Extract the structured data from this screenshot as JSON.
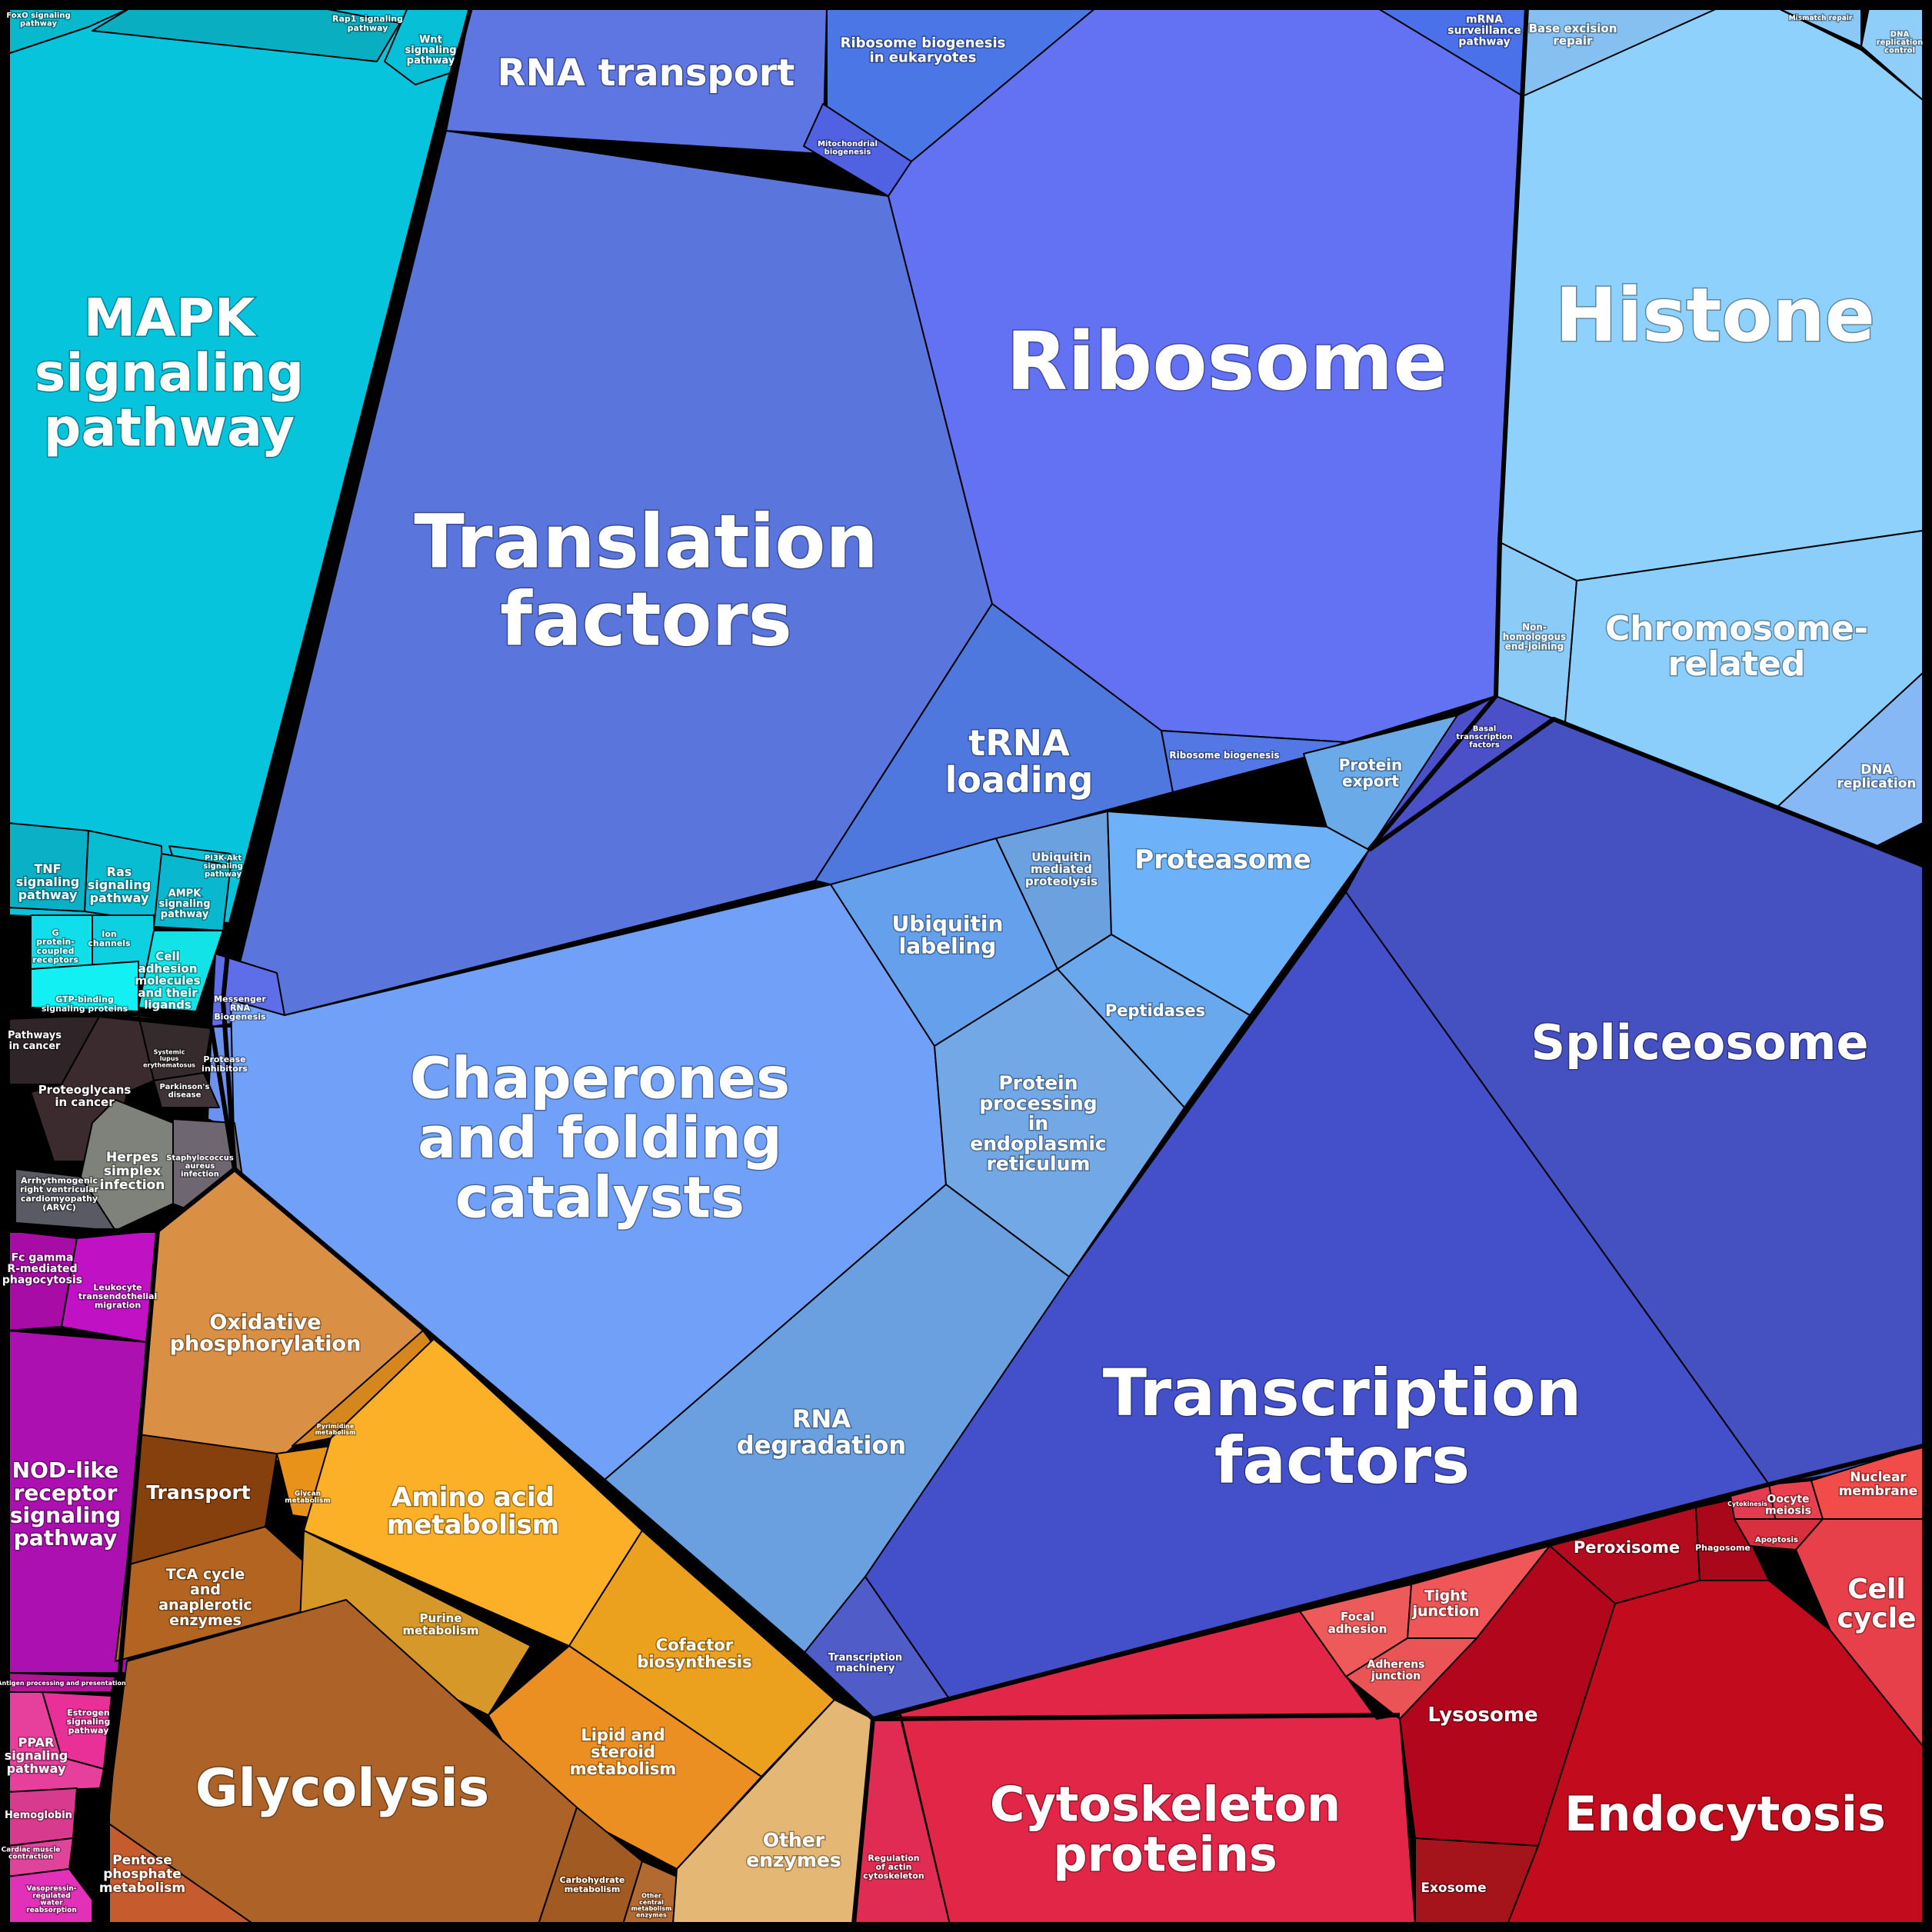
{
  "diagram": {
    "type": "voronoi-treemap",
    "colors": {
      "signaling": "#06C4DC",
      "genetic_info": "#5B6EE1",
      "folding": "#6FA0F7",
      "histone": "#8FD0FC",
      "transcription": "#4552C9",
      "metabolism": "#E0A040",
      "cellular": "#D42A44",
      "disease": "#3A2A2E",
      "organismal": "#B010B0"
    },
    "cells": [
      {
        "label": "MAPK signaling pathway",
        "color": "#06C4DC"
      },
      {
        "label": "FoxO signaling pathway",
        "color": "#08B8CC"
      },
      {
        "label": "Rap1 signaling pathway",
        "color": "#09AFC0"
      },
      {
        "label": "Wnt signaling pathway",
        "color": "#07BFD6"
      },
      {
        "label": "TNF signaling pathway",
        "color": "#0AB0C6"
      },
      {
        "label": "Ras signaling pathway",
        "color": "#08BCD2"
      },
      {
        "label": "PI3K-Akt signaling pathway",
        "color": "#0AC6DB"
      },
      {
        "label": "AMPK signaling pathway",
        "color": "#09B8CE"
      },
      {
        "label": "G protein-coupled receptors",
        "color": "#10DEEB"
      },
      {
        "label": "Ion channels",
        "color": "#0DD0E0"
      },
      {
        "label": "Cell adhesion molecules and their ligands",
        "color": "#11E3E6"
      },
      {
        "label": "GTP-binding signaling proteins",
        "color": "#12F0F4"
      },
      {
        "label": "RNA transport",
        "color": "#5D76E2"
      },
      {
        "label": "Ribosome biogenesis in eukaryotes",
        "color": "#4B76E6"
      },
      {
        "label": "Mitochondrial biogenesis",
        "color": "#5062E2"
      },
      {
        "label": "mRNA surveillance pathway",
        "color": "#4A70EA"
      },
      {
        "label": "Translation factors",
        "color": "#5A75DB"
      },
      {
        "label": "Ribosome",
        "color": "#6372F3"
      },
      {
        "label": "tRNA loading",
        "color": "#4F78DE"
      },
      {
        "label": "Ribosome biogenesis",
        "color": "#5378E6"
      },
      {
        "label": "Protein export",
        "color": "#6AAAE8"
      },
      {
        "label": "Basal transcription factors",
        "color": "#4B50C8"
      },
      {
        "label": "Messenger RNA Biogenesis",
        "color": "#5E6EE8"
      },
      {
        "label": "Protease inhibitors",
        "color": "#6A92EE"
      },
      {
        "label": "Histone",
        "color": "#8ED1FC"
      },
      {
        "label": "Base excision repair",
        "color": "#86C0F0"
      },
      {
        "label": "Mismatch repair",
        "color": "#8AC8F6"
      },
      {
        "label": "DNA replication control",
        "color": "#90CEFA"
      },
      {
        "label": "Non-homologous end-joining",
        "color": "#8ACBF8"
      },
      {
        "label": "Chromosome-related",
        "color": "#8CCEFB"
      },
      {
        "label": "DNA replication",
        "color": "#86B8F5"
      },
      {
        "label": "Chaperones and folding catalysts",
        "color": "#71A0F8"
      },
      {
        "label": "Ubiquitin labeling",
        "color": "#64A0EC"
      },
      {
        "label": "Ubiquitin mediated proteolysis",
        "color": "#6BA1DE"
      },
      {
        "label": "Proteasome",
        "color": "#6DB1F8"
      },
      {
        "label": "Peptidases",
        "color": "#6AA8EE"
      },
      {
        "label": "Protein processing in endoplasmic reticulum",
        "color": "#73A8E6"
      },
      {
        "label": "RNA degradation",
        "color": "#6AA0E0"
      },
      {
        "label": "Spliceosome",
        "color": "#4551C1"
      },
      {
        "label": "Transcription factors",
        "color": "#4350CA"
      },
      {
        "label": "Transcription machinery",
        "color": "#505CC8"
      },
      {
        "label": "Pathways in cancer",
        "color": "#2F2428"
      },
      {
        "label": "Proteoglycans in cancer",
        "color": "#3B2A2E"
      },
      {
        "label": "Systemic lupus erythematosus",
        "color": "#352A2C"
      },
      {
        "label": "Parkinson's disease",
        "color": "#3F3538"
      },
      {
        "label": "Herpes simplex infection",
        "color": "#7E827A"
      },
      {
        "label": "Staphylococcus aureus infection",
        "color": "#6E6670"
      },
      {
        "label": "Arrhythmogenic right ventricular cardiomyopathy (ARVC)",
        "color": "#5A5A64"
      },
      {
        "label": "Fc gamma R-mediated phagocytosis",
        "color": "#A80CA6"
      },
      {
        "label": "Leukocyte transendothelial migration",
        "color": "#C012C4"
      },
      {
        "label": "NOD-like receptor signaling pathway",
        "color": "#AC10B0"
      },
      {
        "label": "Antigen processing and presentation",
        "color": "#B21496"
      },
      {
        "label": "Estrogen signaling pathway",
        "color": "#E83098"
      },
      {
        "label": "PPAR signaling pathway",
        "color": "#E6409C"
      },
      {
        "label": "Hemoglobin",
        "color": "#D83A8E"
      },
      {
        "label": "Cardiac muscle contraction",
        "color": "#E0449A"
      },
      {
        "label": "Vasopressin-regulated water reabsorption",
        "color": "#E230B8"
      },
      {
        "label": "Oxidative phosphorylation",
        "color": "#D99044"
      },
      {
        "label": "Transport",
        "color": "#86400E"
      },
      {
        "label": "Glycan metabolism",
        "color": "#E8921A"
      },
      {
        "label": "Pyrimidine metabolism",
        "color": "#D5871E"
      },
      {
        "label": "Amino acid metabolism",
        "color": "#FCB028"
      },
      {
        "label": "TCA cycle and anaplerotic enzymes",
        "color": "#B26420"
      },
      {
        "label": "Purine metabolism",
        "color": "#D69828"
      },
      {
        "label": "Cofactor biosynthesis",
        "color": "#EBA01E"
      },
      {
        "label": "Lipid and steroid metabolism",
        "color": "#EB8F22"
      },
      {
        "label": "Glycolysis",
        "color": "#AD6228"
      },
      {
        "label": "Pentose phosphate metabolism",
        "color": "#C65C2E"
      },
      {
        "label": "Carbohydrate metabolism",
        "color": "#A05A22"
      },
      {
        "label": "Other central metabolism enzymes",
        "color": "#B36A30"
      },
      {
        "label": "Other enzymes",
        "color": "#E4B774"
      },
      {
        "label": "Regulation of actin cytoskeleton",
        "color": "#E02C52"
      },
      {
        "label": "Cytoskeleton proteins",
        "color": "#E22648"
      },
      {
        "label": "Focal adhesion",
        "color": "#EE5A5A"
      },
      {
        "label": "Tight junction",
        "color": "#F05658"
      },
      {
        "label": "Adherens junction",
        "color": "#EA5457"
      },
      {
        "label": "Peroxisome",
        "color": "#B40C1E"
      },
      {
        "label": "Phagosome",
        "color": "#A8081A"
      },
      {
        "label": "Lysosome",
        "color": "#B1061C"
      },
      {
        "label": "Endocytosis",
        "color": "#C20C1E"
      },
      {
        "label": "Exosome",
        "color": "#A4141A"
      },
      {
        "label": "Cytokinesis",
        "color": "#E43A52"
      },
      {
        "label": "Oocyte meiosis",
        "color": "#E8404E"
      },
      {
        "label": "Apoptosis",
        "color": "#D8303E"
      },
      {
        "label": "Nuclear membrane",
        "color": "#F24C4A"
      },
      {
        "label": "Cell cycle",
        "color": "#E8404A"
      }
    ]
  }
}
